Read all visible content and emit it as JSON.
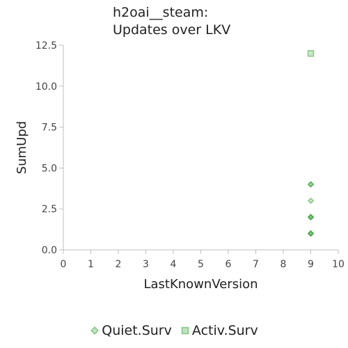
{
  "chart_data": {
    "type": "scatter",
    "title": [
      "h2oai__steam:",
      "Updates over LKV"
    ],
    "xlabel": "LastKnownVersion",
    "ylabel": "SumUpd",
    "xlim": [
      0,
      10
    ],
    "ylim": [
      0,
      12.5
    ],
    "x_ticks": [
      "0",
      "1",
      "2",
      "3",
      "4",
      "5",
      "6",
      "7",
      "8",
      "9",
      "10"
    ],
    "y_ticks": [
      "0.0",
      "2.5",
      "5.0",
      "7.5",
      "10.0",
      "12.5"
    ],
    "grid": false,
    "legend_position": "bottom",
    "series": [
      {
        "name": "Quiet.Surv",
        "marker": "diamond",
        "color": "#2ca02c",
        "points": [
          {
            "x": 9,
            "y": 1
          },
          {
            "x": 9,
            "y": 1
          },
          {
            "x": 9,
            "y": 1
          },
          {
            "x": 9,
            "y": 2
          },
          {
            "x": 9,
            "y": 2
          },
          {
            "x": 9,
            "y": 2
          },
          {
            "x": 9,
            "y": 3
          },
          {
            "x": 9,
            "y": 4
          },
          {
            "x": 9,
            "y": 4
          }
        ]
      },
      {
        "name": "Activ.Surv",
        "marker": "square",
        "color": "#2ca02c",
        "points": [
          {
            "x": 9,
            "y": 12
          }
        ]
      }
    ]
  }
}
